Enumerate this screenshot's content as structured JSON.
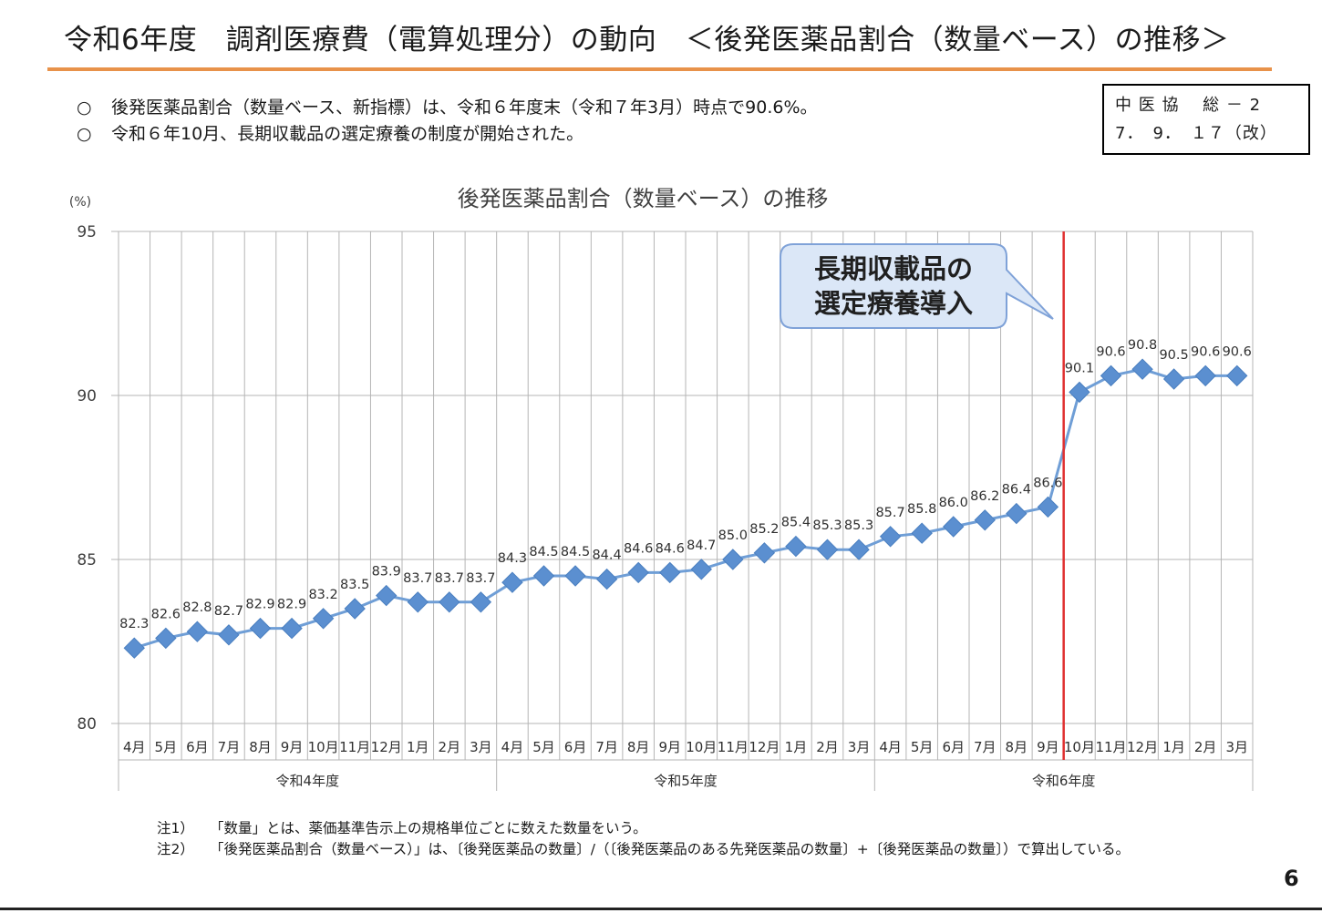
{
  "page": {
    "title": "令和6年度　調剤医療費（電算処理分）の動向　＜後発医薬品割合（数量ベース）の推移＞",
    "bullets": [
      "後発医薬品割合（数量ベース、新指標）は、令和６年度末（令和７年3月）時点で90.6%。",
      "令和６年10月、長期収載品の選定療養の制度が開始された。"
    ],
    "bullet_mark": "○",
    "code_box": {
      "line1": "中 医 協　 総 － 2",
      "line2": "7．　9．　１７（改）"
    },
    "notes": [
      {
        "label": "注1）",
        "text": "「数量」とは、薬価基準告示上の規格単位ごとに数えた数量をいう。"
      },
      {
        "label": "注2）",
        "text": "「後発医薬品割合（数量ベース）」は、〔後発医薬品の数量〕/（〔後発医薬品のある先発医薬品の数量〕+〔後発医薬品の数量〕）で算出している。"
      }
    ],
    "page_number": "6"
  },
  "chart_data": {
    "type": "line",
    "title": "後発医薬品割合（数量ベース）の推移",
    "yunit": "(%)",
    "ylim": [
      80,
      95
    ],
    "yticks": [
      80,
      85,
      90,
      95
    ],
    "categories": [
      "4月",
      "5月",
      "6月",
      "7月",
      "8月",
      "9月",
      "10月",
      "11月",
      "12月",
      "1月",
      "2月",
      "3月",
      "4月",
      "5月",
      "6月",
      "7月",
      "8月",
      "9月",
      "10月",
      "11月",
      "12月",
      "1月",
      "2月",
      "3月",
      "4月",
      "5月",
      "6月",
      "7月",
      "8月",
      "9月",
      "10月",
      "11月",
      "12月",
      "1月",
      "2月",
      "3月"
    ],
    "groups": [
      {
        "label": "令和4年度",
        "count": 12
      },
      {
        "label": "令和5年度",
        "count": 12
      },
      {
        "label": "令和6年度",
        "count": 12
      }
    ],
    "values": [
      82.3,
      82.6,
      82.8,
      82.7,
      82.9,
      82.9,
      83.2,
      83.5,
      83.9,
      83.7,
      83.7,
      83.7,
      84.3,
      84.5,
      84.5,
      84.4,
      84.6,
      84.6,
      84.7,
      85.0,
      85.2,
      85.4,
      85.3,
      85.3,
      85.7,
      85.8,
      86.0,
      86.2,
      86.4,
      86.6,
      90.1,
      90.6,
      90.8,
      90.5,
      90.6,
      90.6
    ],
    "data_labels": [
      "82.3",
      "82.6",
      "82.8",
      "82.7",
      "82.9",
      "82.9",
      "83.2",
      "83.5",
      "83.9",
      "83.7",
      "83.7",
      "83.7",
      "84.3",
      "84.5",
      "84.5",
      "84.4",
      "84.6",
      "84.6",
      "84.7",
      "85.0",
      "85.2",
      "85.4",
      "85.3",
      "85.3",
      "85.7",
      "85.8",
      "86.0",
      "86.2",
      "86.4",
      "86.6",
      "90.1",
      "90.6",
      "90.8",
      "90.5",
      "90.6",
      "90.6"
    ],
    "series_color": "#6f9ed6",
    "marker_color": "#5b8fd0",
    "event_line": {
      "between_index": [
        29,
        30
      ],
      "color": "#e03030"
    },
    "callout": {
      "line1": "長期収載品の",
      "line2": "選定療養導入",
      "fill": "#dbe7f7",
      "stroke": "#7fa2d8"
    },
    "grid": true,
    "legend": "none"
  }
}
